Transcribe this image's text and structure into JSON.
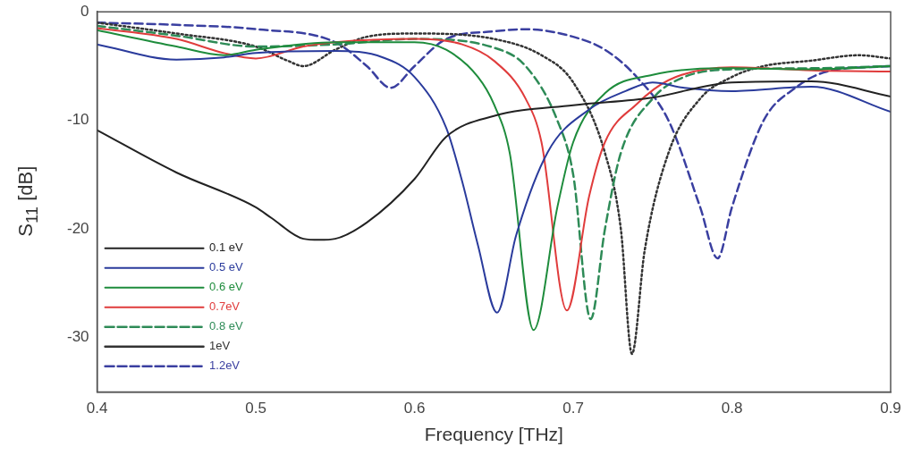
{
  "chart_data": {
    "type": "line",
    "xlabel": "Frequency [THz]",
    "ylabel": "S$_{11}$ [dB]",
    "xlim": [
      0.4,
      0.9
    ],
    "xticks": [
      0.4,
      0.5,
      0.6,
      0.7,
      0.8,
      0.9
    ],
    "ylim": [
      -35,
      0
    ],
    "yticks": [
      -30,
      -20,
      -10,
      0
    ],
    "grid": false,
    "legend": "bottom left",
    "marker": "none",
    "series": [
      {
        "name": "0.1 eV",
        "color": "#222222",
        "line_style": "solid",
        "x": [
          0.4,
          0.45,
          0.5,
          0.51,
          0.53,
          0.54,
          0.55,
          0.57,
          0.6,
          0.62,
          0.65,
          0.7,
          0.75,
          0.8,
          0.85,
          0.9
        ],
        "values": [
          -10.9,
          -14.8,
          -18,
          -19,
          -20.9,
          -21,
          -20.9,
          -19.4,
          -15.4,
          -11.5,
          -9.6,
          -8.6,
          -7.9,
          -6.5,
          -6.4,
          -7.8
        ]
      },
      {
        "name": "0.5 eV",
        "color": "#2a3b9c",
        "line_style": "solid",
        "x": [
          0.4,
          0.45,
          0.48,
          0.5,
          0.55,
          0.58,
          0.6,
          0.62,
          0.63,
          0.64,
          0.652,
          0.664,
          0.684,
          0.71,
          0.733,
          0.75,
          0.77,
          0.8,
          0.85,
          0.9
        ],
        "values": [
          -3,
          -4.4,
          -4.2,
          -3.8,
          -3.6,
          -4.2,
          -6,
          -10.7,
          -15.6,
          -21.5,
          -27.7,
          -20.6,
          -12.9,
          -9,
          -7.3,
          -6.5,
          -7,
          -7.3,
          -6.9,
          -9.2
        ]
      },
      {
        "name": "0.6 eV",
        "color": "#1e8c3c",
        "line_style": "solid",
        "x": [
          0.4,
          0.45,
          0.48,
          0.5,
          0.55,
          0.6,
          0.62,
          0.64,
          0.65,
          0.66,
          0.675,
          0.69,
          0.7,
          0.72,
          0.75,
          0.8,
          0.85,
          0.9
        ],
        "values": [
          -1.7,
          -3.2,
          -4,
          -3.5,
          -2.8,
          -2.8,
          -3.5,
          -6,
          -8.5,
          -13,
          -29.3,
          -18,
          -12,
          -7.5,
          -5.8,
          -5.2,
          -5.3,
          -5
        ]
      },
      {
        "name": "0.7eV",
        "color": "#e03c3c",
        "line_style": "solid",
        "x": [
          0.4,
          0.45,
          0.48,
          0.5,
          0.53,
          0.55,
          0.6,
          0.63,
          0.65,
          0.67,
          0.68,
          0.696,
          0.71,
          0.72,
          0.74,
          0.76,
          0.8,
          0.85,
          0.9
        ],
        "values": [
          -1.5,
          -2.5,
          -3.8,
          -4.3,
          -3.2,
          -2.8,
          -2.5,
          -3,
          -4.5,
          -8,
          -12,
          -27.5,
          -17,
          -12,
          -8.5,
          -6.3,
          -5.1,
          -5.4,
          -5.5
        ]
      },
      {
        "name": "0.8 eV",
        "color": "#2e8b57",
        "line_style": "dashed",
        "x": [
          0.4,
          0.45,
          0.5,
          0.55,
          0.6,
          0.65,
          0.67,
          0.69,
          0.7,
          0.711,
          0.72,
          0.73,
          0.75,
          0.77,
          0.8,
          0.85,
          0.9
        ],
        "values": [
          -1.3,
          -2.2,
          -3.2,
          -3,
          -2.5,
          -3.3,
          -5,
          -10,
          -15,
          -28.3,
          -20,
          -13,
          -8,
          -6,
          -5.3,
          -5.2,
          -5
        ]
      },
      {
        "name": "1eV",
        "color": "#333333",
        "line_style": "dotted",
        "x": [
          0.4,
          0.45,
          0.5,
          0.52,
          0.53,
          0.55,
          0.57,
          0.6,
          0.65,
          0.68,
          0.7,
          0.72,
          0.73,
          0.737,
          0.745,
          0.76,
          0.78,
          0.8,
          0.82,
          0.85,
          0.88,
          0.9
        ],
        "values": [
          -1,
          -2,
          -3.2,
          -4.5,
          -5,
          -3.5,
          -2.3,
          -2,
          -2.5,
          -4,
          -6.5,
          -13,
          -20,
          -31.5,
          -22,
          -13,
          -8,
          -6,
          -5,
          -4.5,
          -4,
          -4.3
        ]
      },
      {
        "name": "1.2eV",
        "color": "#3a3fa0",
        "line_style": "dashed",
        "x": [
          0.4,
          0.45,
          0.5,
          0.55,
          0.57,
          0.585,
          0.6,
          0.62,
          0.65,
          0.67,
          0.7,
          0.72,
          0.74,
          0.76,
          0.78,
          0.791,
          0.8,
          0.82,
          0.84,
          0.86,
          0.9
        ],
        "values": [
          -1,
          -1.2,
          -1.6,
          -2.8,
          -5,
          -7,
          -5,
          -2.5,
          -1.8,
          -1.6,
          -2.3,
          -3.5,
          -6,
          -10,
          -18,
          -22.7,
          -18,
          -10,
          -7,
          -5.5,
          -5
        ]
      }
    ]
  }
}
